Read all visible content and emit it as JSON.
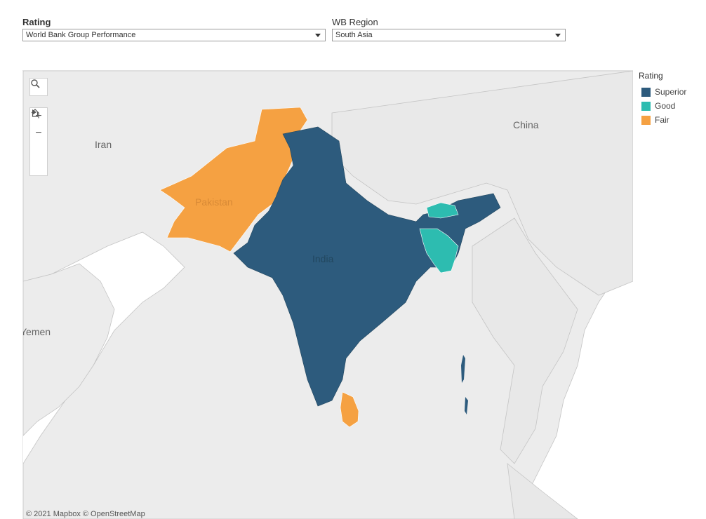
{
  "filters": {
    "rating": {
      "label": "Rating",
      "value": "World Bank Group Performance"
    },
    "region": {
      "label": "WB Region",
      "value": "South Asia"
    }
  },
  "map": {
    "labels": {
      "iran": "Iran",
      "china": "China",
      "pakistan": "Pakistan",
      "india": "India",
      "yemen": "Yemen"
    },
    "attribution": "© 2021 Mapbox  © OpenStreetMap",
    "colors": {
      "land": "#ececec",
      "water": "#ffffff",
      "border": "#b9b9b9",
      "superior": "#2d5b7d",
      "good": "#2dbcb0",
      "fair": "#f5a142"
    },
    "countries": [
      {
        "name": "India",
        "rating": "Superior"
      },
      {
        "name": "Pakistan",
        "rating": "Fair"
      },
      {
        "name": "Sri Lanka",
        "rating": "Fair"
      },
      {
        "name": "Bangladesh",
        "rating": "Good"
      },
      {
        "name": "Bhutan",
        "rating": "Good"
      }
    ],
    "controls": {
      "search_icon": "search-icon",
      "zoom_in": "+",
      "zoom_out": "−",
      "home_icon": "home-icon",
      "pan_icon": "play-icon"
    }
  },
  "legend": {
    "title": "Rating",
    "items": [
      {
        "label": "Superior",
        "color": "#2d5b7d"
      },
      {
        "label": "Good",
        "color": "#2dbcb0"
      },
      {
        "label": "Fair",
        "color": "#f5a142"
      }
    ]
  }
}
